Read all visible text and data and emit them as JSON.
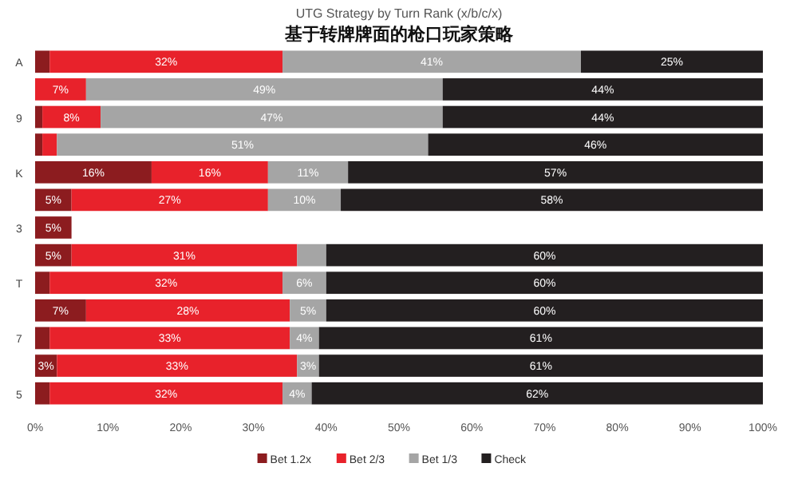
{
  "chart_data": {
    "type": "bar",
    "orientation": "horizontal",
    "stacked": true,
    "title": "UTG Strategy by Turn Rank (x/b/c/x)",
    "subtitle": "基于转牌牌面的枪口玩家策略",
    "categories": [
      "A",
      null,
      "9",
      null,
      "K",
      null,
      "3",
      null,
      "T",
      null,
      "7",
      null,
      "5"
    ],
    "series": [
      {
        "name": "Bet 1.2x",
        "color": "#8c1c1f",
        "values": [
          2,
          0,
          1,
          1,
          16,
          5,
          5,
          5,
          2,
          7,
          2,
          3,
          2
        ],
        "value_labels": [
          null,
          null,
          null,
          null,
          "16%",
          "5%",
          "5%",
          "5%",
          null,
          "7%",
          null,
          "3%",
          null
        ]
      },
      {
        "name": "Bet 2/3",
        "color": "#e8222b",
        "values": [
          32,
          7,
          8,
          2,
          16,
          27,
          null,
          31,
          32,
          28,
          33,
          33,
          32
        ],
        "value_labels": [
          "32%",
          "7%",
          "8%",
          null,
          "16%",
          "27%",
          null,
          "31%",
          "32%",
          "28%",
          "33%",
          "33%",
          "32%"
        ]
      },
      {
        "name": "Bet 1/3",
        "color": "#a5a5a5",
        "values": [
          41,
          49,
          47,
          51,
          11,
          10,
          null,
          4,
          6,
          5,
          4,
          3,
          4
        ],
        "value_labels": [
          "41%",
          "49%",
          "47%",
          "51%",
          "11%",
          "10%",
          null,
          null,
          "6%",
          "5%",
          "4%",
          "3%",
          "4%"
        ]
      },
      {
        "name": "Check",
        "color": "#231f20",
        "values": [
          25,
          44,
          44,
          46,
          57,
          58,
          null,
          60,
          60,
          60,
          61,
          61,
          62
        ],
        "value_labels": [
          "25%",
          "44%",
          "44%",
          "46%",
          "57%",
          "58%",
          null,
          "60%",
          "60%",
          "60%",
          "61%",
          "61%",
          "62%"
        ]
      }
    ],
    "xlim": [
      0,
      100
    ],
    "xticks": [
      {
        "value": 0,
        "label": "0%"
      },
      {
        "value": 10,
        "label": "10%"
      },
      {
        "value": 20,
        "label": "20%"
      },
      {
        "value": 30,
        "label": "30%"
      },
      {
        "value": 40,
        "label": "40%"
      },
      {
        "value": 50,
        "label": "50%"
      },
      {
        "value": 60,
        "label": "60%"
      },
      {
        "value": 70,
        "label": "70%"
      },
      {
        "value": 80,
        "label": "80%"
      },
      {
        "value": 90,
        "label": "90%"
      },
      {
        "value": 100,
        "label": "100%"
      }
    ],
    "legend": "bottom"
  }
}
